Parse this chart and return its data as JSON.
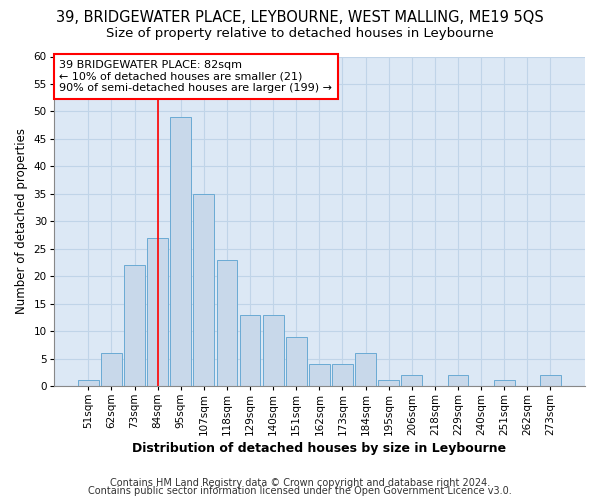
{
  "title": "39, BRIDGEWATER PLACE, LEYBOURNE, WEST MALLING, ME19 5QS",
  "subtitle": "Size of property relative to detached houses in Leybourne",
  "xlabel": "Distribution of detached houses by size in Leybourne",
  "ylabel": "Number of detached properties",
  "bins": [
    "51sqm",
    "62sqm",
    "73sqm",
    "84sqm",
    "95sqm",
    "107sqm",
    "118sqm",
    "129sqm",
    "140sqm",
    "151sqm",
    "162sqm",
    "173sqm",
    "184sqm",
    "195sqm",
    "206sqm",
    "218sqm",
    "229sqm",
    "240sqm",
    "251sqm",
    "262sqm",
    "273sqm"
  ],
  "values": [
    1,
    6,
    22,
    27,
    49,
    35,
    23,
    13,
    13,
    9,
    4,
    4,
    6,
    1,
    2,
    0,
    2,
    0,
    1,
    0,
    2
  ],
  "bar_color": "#c8d8ea",
  "bar_edge_color": "#6aaad4",
  "red_line_bin_index": 3,
  "annotation_line1": "39 BRIDGEWATER PLACE: 82sqm",
  "annotation_line2": "← 10% of detached houses are smaller (21)",
  "annotation_line3": "90% of semi-detached houses are larger (199) →",
  "ylim": [
    0,
    60
  ],
  "yticks": [
    0,
    5,
    10,
    15,
    20,
    25,
    30,
    35,
    40,
    45,
    50,
    55,
    60
  ],
  "footer1": "Contains HM Land Registry data © Crown copyright and database right 2024.",
  "footer2": "Contains public sector information licensed under the Open Government Licence v3.0.",
  "fig_bg_color": "#ffffff",
  "plot_bg_color": "#dce8f5",
  "grid_color": "#c0d4e8",
  "title_fontsize": 10.5,
  "subtitle_fontsize": 9.5,
  "xlabel_fontsize": 9,
  "ylabel_fontsize": 8.5,
  "annot_fontsize": 8,
  "tick_fontsize": 7.5,
  "footer_fontsize": 7
}
